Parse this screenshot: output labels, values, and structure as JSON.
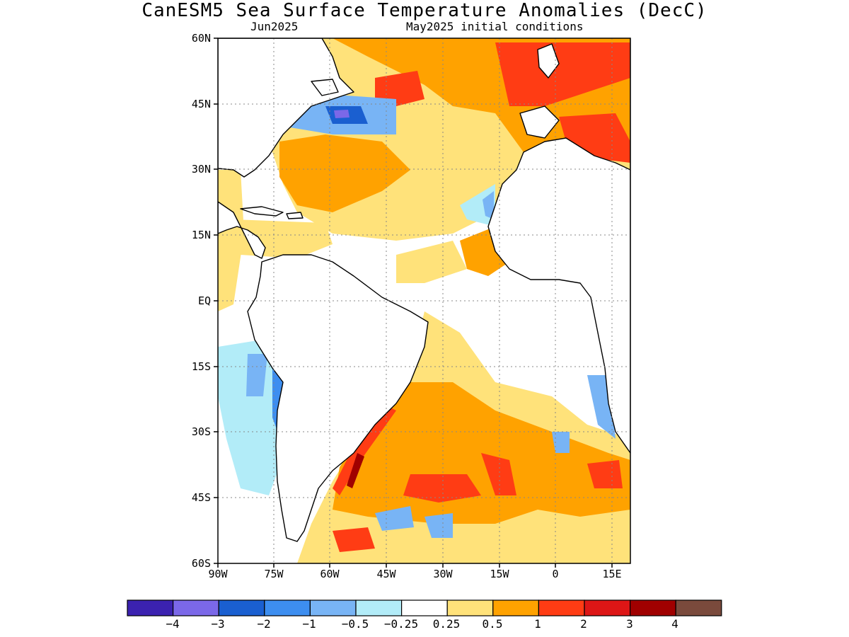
{
  "title": "CanESM5 Sea Surface Temperature Anomalies (DecC)",
  "subtitle_left": "Jun2025",
  "subtitle_right": "May2025 initial conditions",
  "lat_labels": [
    "60N",
    "45N",
    "30N",
    "15N",
    "EQ",
    "15S",
    "30S",
    "45S",
    "60S"
  ],
  "lon_labels": [
    "90W",
    "75W",
    "60W",
    "45W",
    "30W",
    "15W",
    "0",
    "15E"
  ],
  "colorbar": {
    "colors": [
      "#3b22b0",
      "#7b68e8",
      "#1a5fd0",
      "#3d8ef0",
      "#78b4f5",
      "#b2ecf8",
      "#ffffff",
      "#ffe27a",
      "#ffa200",
      "#ff3c14",
      "#dd1616",
      "#a00000",
      "#7a4a3c"
    ],
    "labels": [
      "−4",
      "−3",
      "−2",
      "−1",
      "−0.5",
      "−0.25",
      "0.25",
      "0.5",
      "1",
      "2",
      "3",
      "4"
    ]
  },
  "map_extent": {
    "lon": [
      -90,
      20
    ],
    "lat": [
      -60,
      60
    ]
  }
}
